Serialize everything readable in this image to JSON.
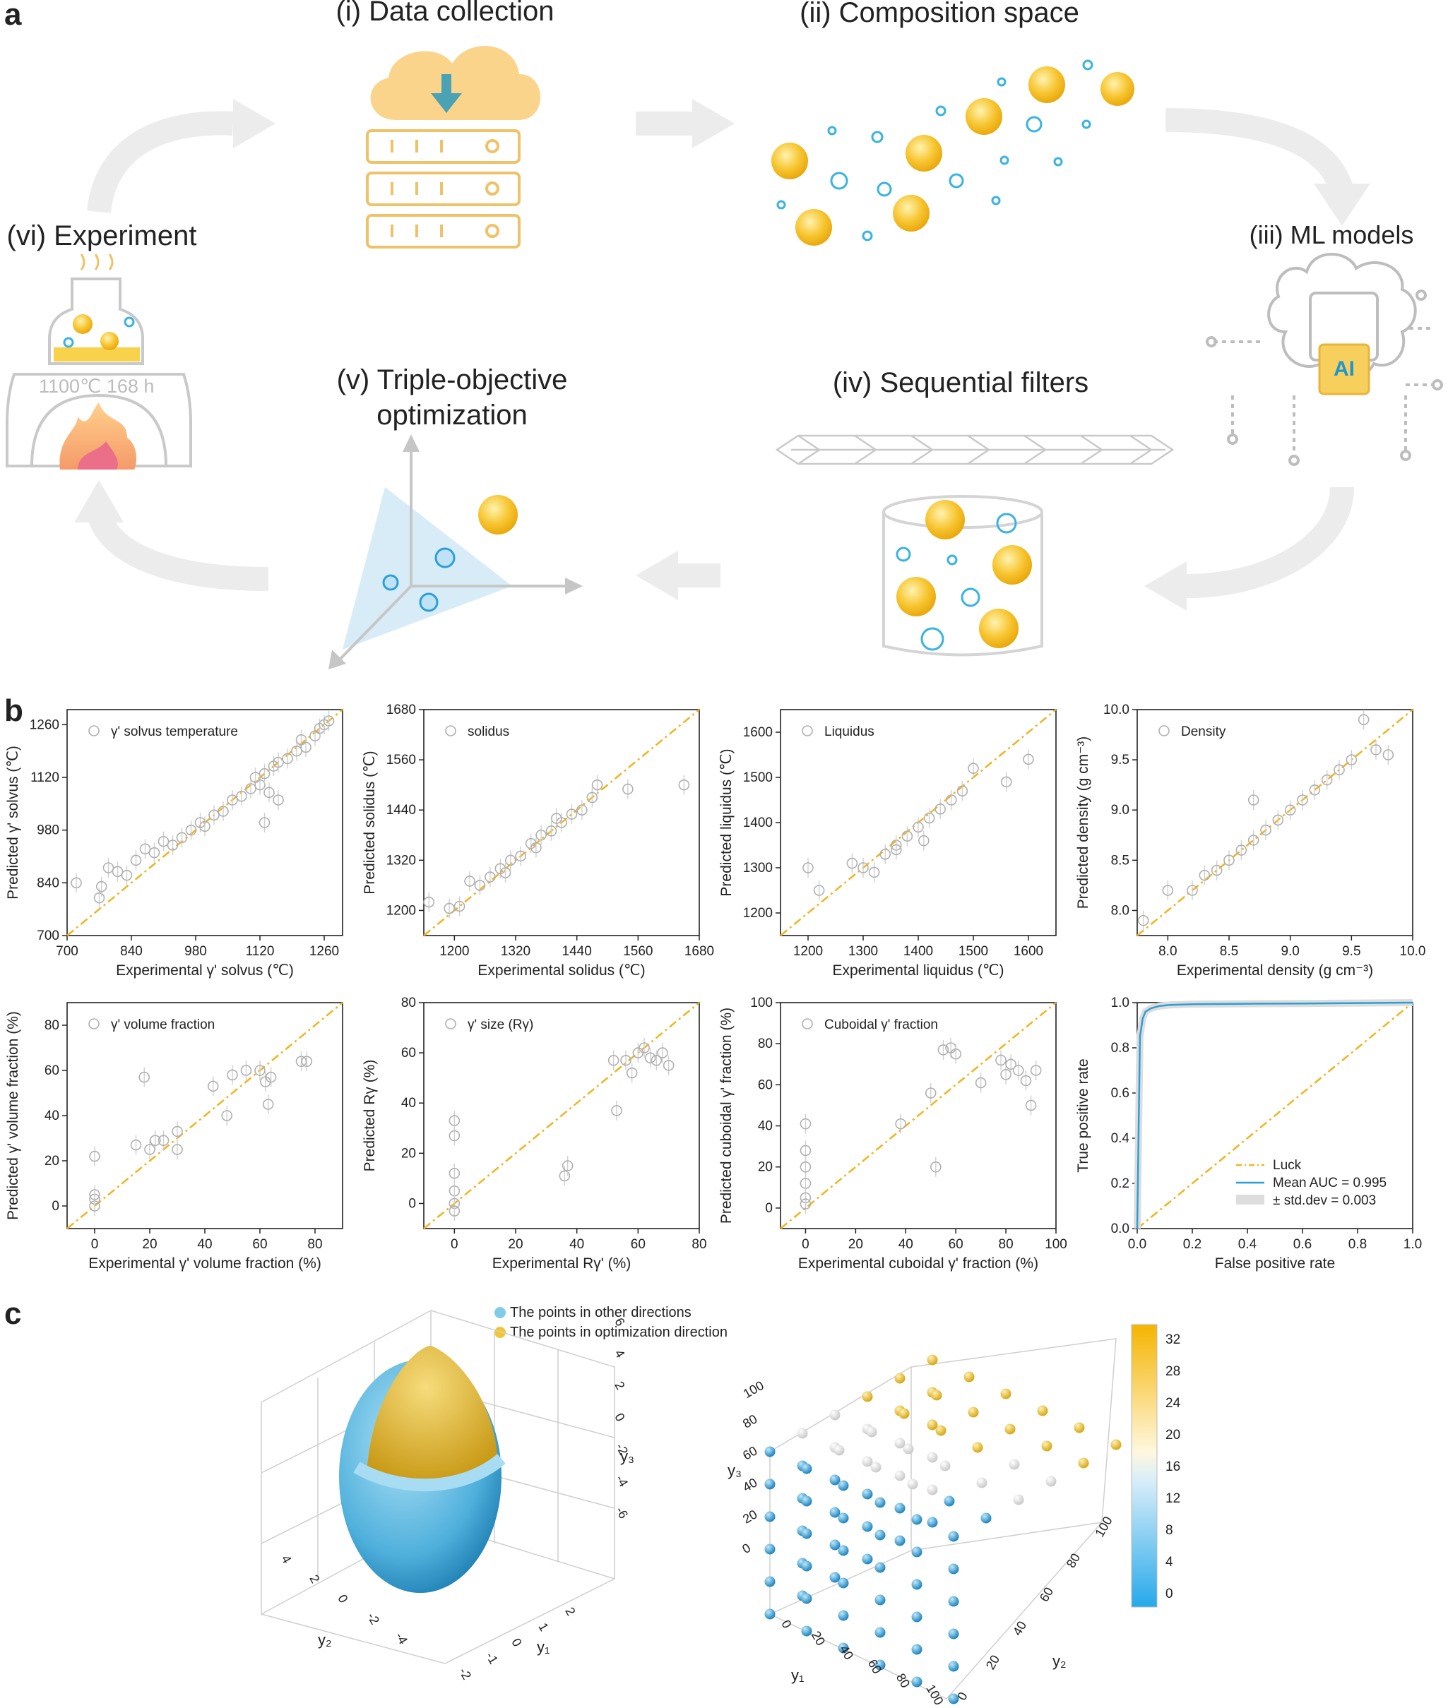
{
  "panels": {
    "a": {
      "letter": "a",
      "stages": {
        "data_collection": "(i) Data collection",
        "composition_space": "(ii) Composition space",
        "ml_models": "(iii) ML models",
        "sequential_filters": "(iv) Sequential filters",
        "triple_line1": "(v) Triple-objective",
        "triple_line2": "optimization",
        "experiment": "(vi) Experiment"
      },
      "experiment_condition": "1100℃ 168 h",
      "ai_chip_label": "AI"
    },
    "b": {
      "letter": "b"
    },
    "c": {
      "letter": "c",
      "legend": {
        "other": "The points in other directions",
        "optimization": "The points in optimization direction"
      },
      "colorbar_ticks": [
        "32",
        "28",
        "24",
        "20",
        "16",
        "12",
        "8",
        "4",
        "0"
      ],
      "sphere_axes": {
        "y1": "y₁",
        "y2": "y₂",
        "y3": "y₃"
      },
      "sphere_ticks": {
        "y3": [
          "6",
          "4",
          "2",
          "0",
          "-2",
          "-4",
          "-6"
        ],
        "y2": [
          "4",
          "2",
          "0",
          "-2",
          "-4"
        ],
        "y1": [
          "-2",
          "-1",
          "0",
          "1",
          "2"
        ]
      },
      "cube_ticks": {
        "y3": [
          "100",
          "80",
          "60",
          "40",
          "20",
          "0"
        ],
        "y1": [
          "0",
          "20",
          "40",
          "60",
          "80",
          "100"
        ],
        "y2": [
          "0",
          "20",
          "40",
          "60",
          "80",
          "100"
        ]
      }
    }
  },
  "colors": {
    "gold": "#f5c518",
    "blue": "#2b9fd6",
    "line": "#f0b41e",
    "grey": "#b0b0b0"
  },
  "chart_data": [
    {
      "type": "scatter",
      "id": "solvus",
      "legend": "γ' solvus temperature",
      "xlabel": "Experimental γ' solvus (℃)",
      "ylabel": "Predicted γ' solvus (℃)",
      "xlim": [
        700,
        1300
      ],
      "ylim": [
        700,
        1300
      ],
      "xticks": [
        "700",
        "840",
        "980",
        "1120",
        "1260"
      ],
      "yticks": [
        "700",
        "840",
        "980",
        "1120",
        "1260"
      ],
      "points": [
        [
          720,
          840
        ],
        [
          770,
          800
        ],
        [
          775,
          830
        ],
        [
          790,
          880
        ],
        [
          810,
          870
        ],
        [
          830,
          860
        ],
        [
          850,
          900
        ],
        [
          870,
          930
        ],
        [
          890,
          920
        ],
        [
          910,
          950
        ],
        [
          930,
          940
        ],
        [
          950,
          960
        ],
        [
          970,
          980
        ],
        [
          990,
          1000
        ],
        [
          1000,
          990
        ],
        [
          1020,
          1020
        ],
        [
          1040,
          1030
        ],
        [
          1060,
          1060
        ],
        [
          1080,
          1070
        ],
        [
          1100,
          1090
        ],
        [
          1110,
          1120
        ],
        [
          1120,
          1100
        ],
        [
          1130,
          1130
        ],
        [
          1140,
          1080
        ],
        [
          1150,
          1150
        ],
        [
          1160,
          1160
        ],
        [
          1180,
          1170
        ],
        [
          1200,
          1190
        ],
        [
          1210,
          1220
        ],
        [
          1220,
          1200
        ],
        [
          1240,
          1230
        ],
        [
          1250,
          1250
        ],
        [
          1260,
          1260
        ],
        [
          1270,
          1270
        ],
        [
          1130,
          1000
        ],
        [
          1160,
          1060
        ]
      ]
    },
    {
      "type": "scatter",
      "id": "solidus",
      "legend": "solidus",
      "xlabel": "Experimental solidus (℃)",
      "ylabel": "Predicted solidus (℃)",
      "xlim": [
        1140,
        1680
      ],
      "ylim": [
        1140,
        1680
      ],
      "xticks": [
        "1200",
        "1320",
        "1440",
        "1560",
        "1680"
      ],
      "yticks": [
        "1200",
        "1320",
        "1440",
        "1560",
        "1680"
      ],
      "points": [
        [
          1150,
          1220
        ],
        [
          1190,
          1205
        ],
        [
          1210,
          1210
        ],
        [
          1230,
          1270
        ],
        [
          1250,
          1260
        ],
        [
          1270,
          1280
        ],
        [
          1290,
          1300
        ],
        [
          1310,
          1320
        ],
        [
          1330,
          1330
        ],
        [
          1350,
          1360
        ],
        [
          1370,
          1380
        ],
        [
          1390,
          1390
        ],
        [
          1410,
          1410
        ],
        [
          1430,
          1430
        ],
        [
          1450,
          1440
        ],
        [
          1470,
          1470
        ],
        [
          1480,
          1500
        ],
        [
          1540,
          1490
        ],
        [
          1650,
          1500
        ],
        [
          1300,
          1290
        ],
        [
          1360,
          1350
        ],
        [
          1400,
          1420
        ]
      ]
    },
    {
      "type": "scatter",
      "id": "liquidus",
      "legend": "Liquidus",
      "xlabel": "Experimental liquidus (℃)",
      "ylabel": "Predicted liquidus (℃)",
      "xlim": [
        1150,
        1650
      ],
      "ylim": [
        1150,
        1650
      ],
      "xticks": [
        "1200",
        "1300",
        "1400",
        "1500",
        "1600"
      ],
      "yticks": [
        "1200",
        "1300",
        "1400",
        "1500",
        "1600"
      ],
      "points": [
        [
          1200,
          1300
        ],
        [
          1220,
          1250
        ],
        [
          1280,
          1310
        ],
        [
          1300,
          1300
        ],
        [
          1320,
          1290
        ],
        [
          1340,
          1330
        ],
        [
          1360,
          1350
        ],
        [
          1380,
          1370
        ],
        [
          1400,
          1390
        ],
        [
          1420,
          1410
        ],
        [
          1440,
          1430
        ],
        [
          1460,
          1450
        ],
        [
          1480,
          1470
        ],
        [
          1500,
          1520
        ],
        [
          1560,
          1490
        ],
        [
          1600,
          1540
        ],
        [
          1360,
          1340
        ],
        [
          1410,
          1360
        ]
      ]
    },
    {
      "type": "scatter",
      "id": "density",
      "legend": "Density",
      "xlabel": "Experimental density (g cm⁻³)",
      "ylabel": "Predicted density (g cm⁻³)",
      "xlim": [
        7.75,
        10.0
      ],
      "ylim": [
        7.75,
        10.0
      ],
      "xticks": [
        "8.0",
        "8.5",
        "9.0",
        "9.5",
        "10.0"
      ],
      "yticks": [
        "8.0",
        "8.5",
        "9.0",
        "9.5",
        "10.0"
      ],
      "points": [
        [
          7.8,
          7.9
        ],
        [
          8.0,
          8.2
        ],
        [
          8.2,
          8.2
        ],
        [
          8.3,
          8.35
        ],
        [
          8.4,
          8.4
        ],
        [
          8.5,
          8.5
        ],
        [
          8.6,
          8.6
        ],
        [
          8.7,
          8.7
        ],
        [
          8.8,
          8.8
        ],
        [
          8.9,
          8.9
        ],
        [
          9.0,
          9.0
        ],
        [
          9.1,
          9.1
        ],
        [
          9.2,
          9.2
        ],
        [
          9.3,
          9.3
        ],
        [
          9.4,
          9.4
        ],
        [
          9.5,
          9.5
        ],
        [
          9.6,
          9.9
        ],
        [
          9.7,
          9.6
        ],
        [
          9.8,
          9.55
        ],
        [
          8.7,
          9.1
        ]
      ]
    },
    {
      "type": "scatter",
      "id": "volume_fraction",
      "legend": "γ' volume fraction",
      "xlabel": "Experimental γ' volume fraction (%)",
      "ylabel": "Predicted γ' volume fraction (%)",
      "xlim": [
        -10,
        90
      ],
      "ylim": [
        -10,
        90
      ],
      "xticks": [
        "0",
        "20",
        "40",
        "60",
        "80"
      ],
      "yticks": [
        "0",
        "20",
        "40",
        "60",
        "80"
      ],
      "points": [
        [
          0,
          22
        ],
        [
          0,
          3
        ],
        [
          0,
          0
        ],
        [
          0,
          5
        ],
        [
          15,
          27
        ],
        [
          18,
          57
        ],
        [
          20,
          25
        ],
        [
          22,
          29
        ],
        [
          25,
          29
        ],
        [
          30,
          25
        ],
        [
          30,
          33
        ],
        [
          43,
          53
        ],
        [
          48,
          40
        ],
        [
          50,
          58
        ],
        [
          55,
          60
        ],
        [
          60,
          60
        ],
        [
          62,
          55
        ],
        [
          63,
          45
        ],
        [
          64,
          57
        ],
        [
          75,
          64
        ],
        [
          77,
          64
        ]
      ]
    },
    {
      "type": "scatter",
      "id": "size",
      "legend": "γ' size (Rγ)",
      "xlabel": "Experimental Rγ' (%)",
      "ylabel": "Predicted Rγ (%)",
      "xlim": [
        -10,
        80
      ],
      "ylim": [
        -10,
        80
      ],
      "xticks": [
        "0",
        "20",
        "40",
        "60",
        "80"
      ],
      "yticks": [
        "0",
        "20",
        "40",
        "60",
        "80"
      ],
      "points": [
        [
          0,
          33
        ],
        [
          0,
          27
        ],
        [
          0,
          12
        ],
        [
          0,
          5
        ],
        [
          0,
          0
        ],
        [
          0,
          -3
        ],
        [
          36,
          11
        ],
        [
          37,
          15
        ],
        [
          52,
          57
        ],
        [
          53,
          37
        ],
        [
          56,
          57
        ],
        [
          58,
          52
        ],
        [
          60,
          60
        ],
        [
          62,
          62
        ],
        [
          64,
          58
        ],
        [
          66,
          57
        ],
        [
          68,
          60
        ],
        [
          70,
          55
        ]
      ]
    },
    {
      "type": "scatter",
      "id": "cuboidal",
      "legend": "Cuboidal γ' fraction",
      "xlabel": "Experimental cuboidal γ' fraction (%)",
      "ylabel": "Predicted cuboidal γ' fraction (%)",
      "xlim": [
        -10,
        100
      ],
      "ylim": [
        -10,
        100
      ],
      "xticks": [
        "0",
        "20",
        "40",
        "60",
        "80",
        "100"
      ],
      "yticks": [
        "0",
        "20",
        "40",
        "60",
        "80",
        "100"
      ],
      "points": [
        [
          0,
          41
        ],
        [
          0,
          28
        ],
        [
          0,
          20
        ],
        [
          0,
          12
        ],
        [
          0,
          5
        ],
        [
          0,
          2
        ],
        [
          38,
          41
        ],
        [
          50,
          56
        ],
        [
          52,
          20
        ],
        [
          55,
          77
        ],
        [
          58,
          78
        ],
        [
          60,
          75
        ],
        [
          70,
          61
        ],
        [
          78,
          72
        ],
        [
          80,
          65
        ],
        [
          82,
          70
        ],
        [
          85,
          67
        ],
        [
          88,
          62
        ],
        [
          90,
          50
        ],
        [
          92,
          67
        ]
      ]
    },
    {
      "type": "line",
      "id": "roc",
      "xlabel": "False positive rate",
      "ylabel": "True positive rate",
      "xlim": [
        0,
        1.0
      ],
      "ylim": [
        0,
        1.0
      ],
      "xticks": [
        "0.0",
        "0.2",
        "0.4",
        "0.6",
        "0.8",
        "1.0"
      ],
      "yticks": [
        "0.0",
        "0.2",
        "0.4",
        "0.6",
        "0.8",
        "1.0"
      ],
      "series": [
        {
          "name": "Mean AUC = 0.995",
          "x": [
            0,
            0.01,
            0.02,
            0.03,
            0.05,
            0.08,
            0.12,
            0.2,
            0.4,
            0.6,
            0.8,
            1.0
          ],
          "y": [
            0,
            0.85,
            0.93,
            0.96,
            0.975,
            0.985,
            0.99,
            0.993,
            0.995,
            0.996,
            0.998,
            1.0
          ]
        },
        {
          "name": "Luck",
          "x": [
            0,
            1
          ],
          "y": [
            0,
            1
          ]
        }
      ],
      "band_label": "± std.dev = 0.003"
    }
  ]
}
